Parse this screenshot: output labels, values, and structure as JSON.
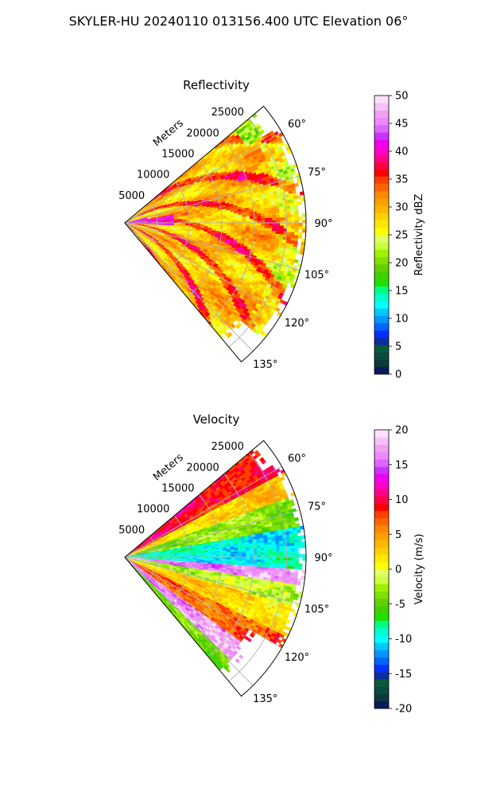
{
  "figure": {
    "title": "SKYLER-HU  20240110  013156.400 UTC Elevation 06°"
  },
  "chart_data": [
    {
      "type": "heatmap",
      "projection": "polar-sector",
      "title": "Reflectivity",
      "range_label": "Meters",
      "range_ticks": [
        "5000",
        "10000",
        "15000",
        "20000",
        "25000"
      ],
      "range_tick_values": [
        5000,
        10000,
        15000,
        20000,
        25000
      ],
      "rmax": 28000,
      "azimuth_min": 50,
      "azimuth_max": 140,
      "azimuth_ticks": [
        "60°",
        "75°",
        "90°",
        "105°",
        "120°",
        "135°"
      ],
      "azimuth_tick_values": [
        60,
        75,
        90,
        105,
        120,
        135
      ],
      "grid": true,
      "colorbar": {
        "label": "Reflectivity dBZ",
        "min": 0,
        "max": 50,
        "ticks": [
          "0",
          "5",
          "10",
          "15",
          "20",
          "25",
          "30",
          "35",
          "40",
          "45",
          "50"
        ],
        "tick_values": [
          0,
          5,
          10,
          15,
          20,
          25,
          30,
          35,
          40,
          45,
          50
        ],
        "palette": [
          "#0a1a5a",
          "#0a3a3a",
          "#0a4a40",
          "#0a5a3a",
          "#0b2ea0",
          "#0030ff",
          "#0064ff",
          "#0096ff",
          "#00c8ff",
          "#00ffff",
          "#00ffcc",
          "#00ff80",
          "#20e000",
          "#40d000",
          "#60d000",
          "#80e000",
          "#a0f000",
          "#c8ff40",
          "#e0ff60",
          "#ffff00",
          "#ffe800",
          "#ffd000",
          "#ffb800",
          "#ffa000",
          "#ff8800",
          "#ff6600",
          "#ff4000",
          "#ff0000",
          "#ff0044",
          "#ff0088",
          "#ff00cc",
          "#ee00ee",
          "#cc33ff",
          "#dd66ff",
          "#ee88ff",
          "#f0a0f0",
          "#f8c0f8",
          "#fde0fd"
        ]
      },
      "field_description": "mostly 25-35 dBZ (yellow/orange) with embedded 35-40 dBZ (red) streaks, magenta 40-45 dBZ near the radar at low azimuths, patchy 15-25 dBZ (green) at far range edges"
    },
    {
      "type": "heatmap",
      "projection": "polar-sector",
      "title": "Velocity",
      "range_label": "Meters",
      "range_ticks": [
        "5000",
        "10000",
        "15000",
        "20000",
        "25000"
      ],
      "range_tick_values": [
        5000,
        10000,
        15000,
        20000,
        25000
      ],
      "rmax": 28000,
      "azimuth_min": 50,
      "azimuth_max": 140,
      "azimuth_ticks": [
        "60°",
        "75°",
        "90°",
        "105°",
        "120°",
        "135°"
      ],
      "azimuth_tick_values": [
        60,
        75,
        90,
        105,
        120,
        135
      ],
      "grid": true,
      "colorbar": {
        "label": "Velocity (m/s)",
        "min": -20,
        "max": 20,
        "ticks": [
          "-20",
          "-15",
          "-10",
          "-5",
          "0",
          "5",
          "10",
          "15",
          "20"
        ],
        "tick_values": [
          -20,
          -15,
          -10,
          -5,
          0,
          5,
          10,
          15,
          20
        ],
        "palette": [
          "#0a1a5a",
          "#0a3a3a",
          "#0a4a40",
          "#0a5a3a",
          "#0b2ea0",
          "#0030ff",
          "#0064ff",
          "#0096ff",
          "#00c8ff",
          "#00ffff",
          "#00ffcc",
          "#00ff80",
          "#20e000",
          "#40d000",
          "#60d000",
          "#80e000",
          "#a0f000",
          "#c8ff40",
          "#e0ff60",
          "#ffff00",
          "#ffe800",
          "#ffd000",
          "#ffb800",
          "#ffa000",
          "#ff8800",
          "#ff6600",
          "#ff4000",
          "#ff0000",
          "#ff0044",
          "#ff0088",
          "#ff00cc",
          "#ee00ee",
          "#cc33ff",
          "#dd66ff",
          "#ee88ff",
          "#f0a0f0",
          "#f8c0f8",
          "#fde0fd"
        ]
      },
      "field_description": "outbound +5 to +10 m/s (orange/red) at 55-65°, -5 m/s (green) 65-80°, -10 to -12 m/s (cyan) 80-95°, folded +15 m/s (magenta) bands along 95-100° and near 125-135°, ~0 m/s (yellow) near 105-115°"
    }
  ]
}
